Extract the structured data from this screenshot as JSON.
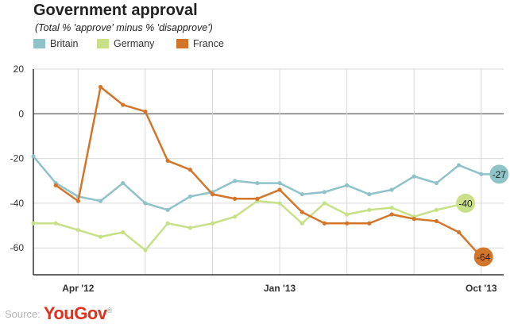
{
  "header": {
    "title": "Government approval",
    "subtitle": "(Total % 'approve' minus % 'disapprove')"
  },
  "source": {
    "label": "Source:",
    "logo_text": "YouGov",
    "logo_mark": "®"
  },
  "colors": {
    "Britain": "#8fc3c8",
    "Germany": "#c8e188",
    "France": "#d4762a"
  },
  "chart_data": {
    "type": "line",
    "title": "Government approval",
    "subtitle": "(Total % 'approve' minus % 'disapprove')",
    "xlabel": "",
    "ylabel": "",
    "ylim": [
      -72,
      20
    ],
    "yticks": [
      20,
      0,
      -20,
      -40,
      -60
    ],
    "grid": true,
    "legend": "top-left",
    "xticks": [
      {
        "label": "Apr '12",
        "x": 2
      },
      {
        "label": "Jan '13",
        "x": 11
      },
      {
        "label": "Oct '13",
        "x": 20
      }
    ],
    "x": [
      0,
      1,
      2,
      3,
      4,
      5,
      6,
      7,
      8,
      9,
      10,
      11,
      12,
      13,
      14,
      15,
      16,
      17,
      18,
      19,
      20
    ],
    "series": [
      {
        "name": "Britain",
        "color": "#8fc3c8",
        "x": [
          0,
          1,
          2,
          3,
          4,
          5,
          6,
          7,
          8,
          9,
          10,
          11,
          12,
          13,
          14,
          15,
          16,
          17,
          18,
          19,
          20,
          20.8
        ],
        "values": [
          -19,
          -31,
          -37,
          -39,
          -31,
          -40,
          -43,
          -37,
          -35,
          -30,
          -31,
          -31,
          -36,
          -35,
          -32,
          -36,
          -34,
          -28,
          -31,
          -23,
          -27,
          -27
        ],
        "end_label": "-27"
      },
      {
        "name": "Germany",
        "color": "#c8e188",
        "x": [
          0,
          1,
          2,
          3,
          4,
          5,
          6,
          7,
          8,
          9,
          10,
          11,
          12,
          13,
          14,
          15,
          16,
          17,
          18,
          19.3
        ],
        "values": [
          -49,
          -49,
          -52,
          -55,
          -53,
          -61,
          -49,
          -51,
          -49,
          -46,
          -39,
          -40,
          -49,
          -40,
          -45,
          -43,
          -42,
          -46,
          -43,
          -40
        ],
        "end_label": "-40"
      },
      {
        "name": "France",
        "color": "#d4762a",
        "x": [
          1,
          2,
          3,
          4,
          5,
          6,
          7,
          8,
          9,
          10,
          11,
          12,
          13,
          14,
          15,
          16,
          17,
          18,
          19,
          20,
          20.1
        ],
        "values": [
          -32,
          -39,
          12,
          4,
          1,
          -21,
          -25,
          -36,
          -38,
          -38,
          -34,
          -44,
          -49,
          -49,
          -49,
          -45,
          -47,
          -48,
          -53,
          -64,
          -64
        ],
        "end_label": "-64"
      }
    ]
  }
}
